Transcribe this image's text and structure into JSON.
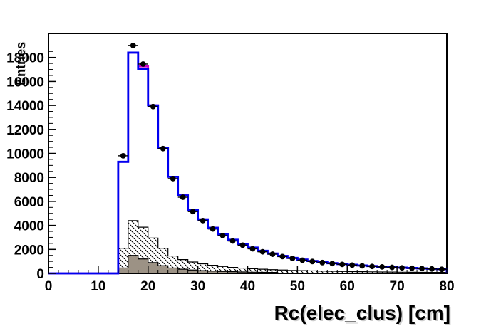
{
  "figure": {
    "title": "",
    "background": "#ffffff"
  },
  "chart_data": {
    "type": "bar",
    "subtype": "root-style stacked histogram with data points",
    "title": "",
    "xlabel": "Rc(elec_clus) [cm]",
    "ylabel": "Entries",
    "xlim": [
      0,
      80
    ],
    "ylim": [
      0,
      20000
    ],
    "grid": false,
    "legend": null,
    "x_major_ticks": [
      0,
      10,
      20,
      30,
      40,
      50,
      60,
      70,
      80
    ],
    "x_tick_labels": [
      "0",
      "10",
      "20",
      "30",
      "40",
      "50",
      "60",
      "70",
      "80"
    ],
    "x_minor_step": 2,
    "y_major_ticks": [
      0,
      2000,
      4000,
      6000,
      8000,
      10000,
      12000,
      14000,
      16000,
      18000
    ],
    "y_tick_labels": [
      "0",
      "2000",
      "4000",
      "6000",
      "8000",
      "10000",
      "12000",
      "14000",
      "16000",
      "18000"
    ],
    "y_minor_step": 500,
    "bin_start": 14,
    "bin_width": 2,
    "colors": {
      "total_line": "#0000f0",
      "overlay_line": "#cc00cc",
      "hatched_outline": "#000000",
      "solid_fill": "#9c9285",
      "data_marker": "#000000",
      "frame": "#000000"
    },
    "series": [
      {
        "name": "total-histogram-blue",
        "style": "step-line",
        "values": [
          9300,
          18400,
          17050,
          14000,
          10450,
          8050,
          6500,
          5300,
          4500,
          3800,
          3250,
          2800,
          2450,
          2150,
          1880,
          1650,
          1450,
          1290,
          1150,
          1030,
          930,
          850,
          780,
          720,
          660,
          610,
          560,
          520,
          480,
          450,
          420,
          390,
          360
        ]
      },
      {
        "name": "overlay-histogram-magenta",
        "style": "step-line",
        "values": [
          9300,
          18400,
          17250,
          14000,
          10450,
          8050,
          6500,
          5300,
          4500,
          3800,
          3250,
          2800,
          2450,
          2150,
          1880,
          1650,
          1450,
          1290,
          1150,
          1030,
          930,
          850,
          780,
          720,
          660,
          610,
          560,
          520,
          480,
          450,
          420,
          390,
          360
        ]
      },
      {
        "name": "background-histogram-hatched",
        "style": "step-fill-hatched",
        "values": [
          2100,
          4400,
          3850,
          2950,
          2100,
          1450,
          1150,
          950,
          800,
          680,
          580,
          500,
          440,
          390,
          350,
          310,
          280,
          250,
          230,
          210,
          190,
          175,
          160,
          150,
          140,
          130,
          120,
          110,
          100,
          95,
          90,
          85,
          80
        ]
      },
      {
        "name": "background-histogram-gray",
        "style": "step-fill-solid",
        "values": [
          450,
          1500,
          1200,
          900,
          640,
          450,
          350,
          280,
          230,
          190,
          160,
          140,
          120,
          100,
          90,
          80,
          0,
          0,
          0,
          0,
          0,
          0,
          0,
          0,
          0,
          0,
          0,
          0,
          0,
          0,
          0,
          0,
          0
        ]
      },
      {
        "name": "data-points",
        "style": "points-errorbars",
        "x": [
          15,
          17,
          19,
          21,
          23,
          25,
          27,
          29,
          31,
          33,
          35,
          37,
          39,
          41,
          43,
          45,
          47,
          49,
          51,
          53,
          55,
          57,
          59,
          61,
          63,
          65,
          67,
          69,
          71,
          73,
          75,
          77,
          79
        ],
        "values": [
          9800,
          19000,
          17450,
          13900,
          10400,
          7900,
          6350,
          5150,
          4400,
          3700,
          3150,
          2700,
          2350,
          2050,
          1800,
          1600,
          1400,
          1250,
          1100,
          990,
          900,
          820,
          750,
          690,
          630,
          580,
          540,
          500,
          460,
          430,
          400,
          370,
          340
        ]
      }
    ]
  }
}
